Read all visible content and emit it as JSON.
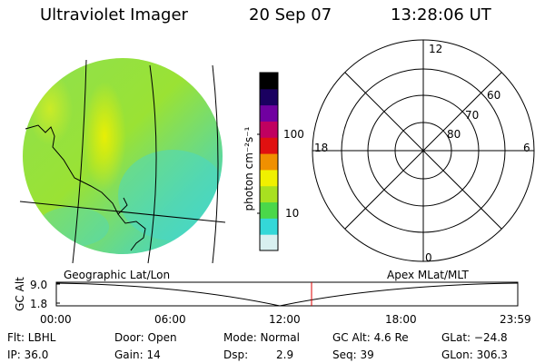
{
  "header": {
    "instrument": "Ultraviolet Imager",
    "date": "20 Sep 07",
    "time": "13:28:06 UT"
  },
  "colorbar": {
    "label": "photon cm⁻²s⁻¹",
    "ticks": [
      "100",
      "10"
    ],
    "colors": [
      "#d8f0f0",
      "#34d8d8",
      "#4ad84a",
      "#a8e020",
      "#f0f000",
      "#f09000",
      "#e01010",
      "#c00060",
      "#7000a0",
      "#1a0060",
      "#000000"
    ]
  },
  "polar_grid": {
    "hour_labels": {
      "top": "12",
      "left": "18",
      "right": "6",
      "bottom": "0"
    },
    "lat_labels": [
      "60",
      "70",
      "80"
    ]
  },
  "timeline": {
    "left_label": "Geographic Lat/Lon",
    "right_label": "Apex MLat/MLT",
    "axis_title": "GC Alt",
    "y_ticks": [
      "9.0",
      "1.8"
    ],
    "x_ticks": [
      "00:00",
      "06:00",
      "12:00",
      "18:00",
      "23:59"
    ],
    "marker_time": "13:28",
    "marker_color": "#dd0000"
  },
  "info": {
    "flt": "Flt: LBHL",
    "ip": "IP: 36.0",
    "door": "Door: Open",
    "gain": "Gain: 14",
    "mode": "Mode: Normal",
    "dsp_label": "Dsp:",
    "dsp_value": "2.9",
    "gc_alt": "GC Alt: 4.6 Re",
    "seq": "Seq: 39",
    "glat": "GLat: −24.8",
    "glon": "GLon: 306.3"
  }
}
